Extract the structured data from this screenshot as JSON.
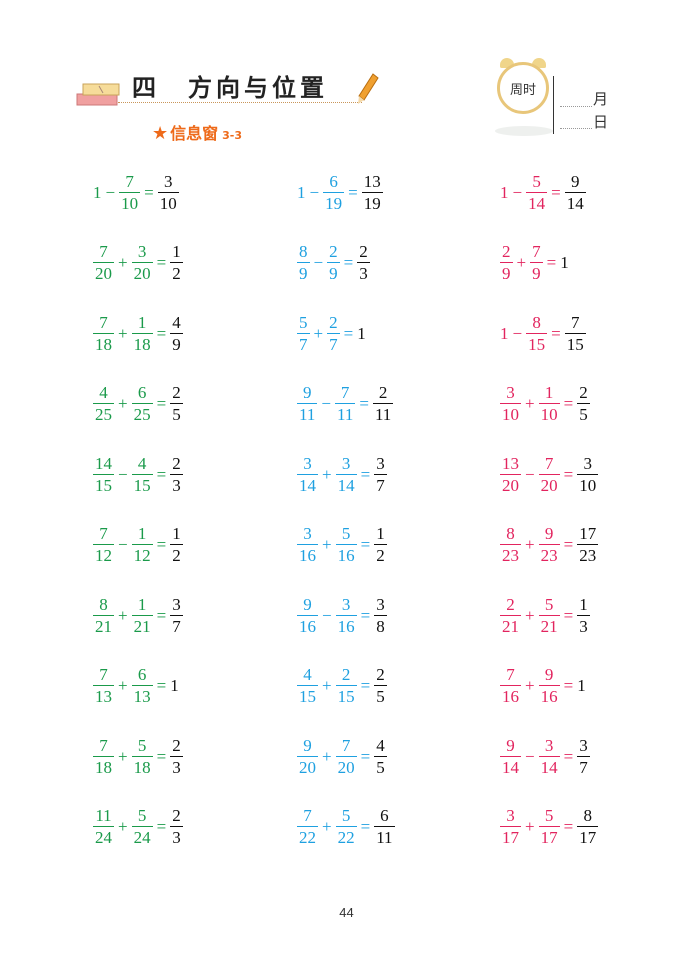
{
  "header": {
    "unit_number": "四",
    "unit_title": "方向与位置",
    "section_label": "信息窗",
    "section_code": "3-3",
    "clock_text": "周时",
    "month_label": "月",
    "day_label": "日"
  },
  "colors": {
    "col1": "#1a9a4a",
    "col2": "#1ea0e0",
    "col3": "#e2245e",
    "accent": "#ee6a1a"
  },
  "columns": [
    {
      "color_key": "col1",
      "equations": [
        {
          "a": "1",
          "op": "−",
          "b": "7/10",
          "r": "3/10"
        },
        {
          "a": "7/20",
          "op": "+",
          "b": "3/20",
          "r": "1/2"
        },
        {
          "a": "7/18",
          "op": "+",
          "b": "1/18",
          "r": "4/9"
        },
        {
          "a": "4/25",
          "op": "+",
          "b": "6/25",
          "r": "2/5"
        },
        {
          "a": "14/15",
          "op": "−",
          "b": "4/15",
          "r": "2/3"
        },
        {
          "a": "7/12",
          "op": "−",
          "b": "1/12",
          "r": "1/2"
        },
        {
          "a": "8/21",
          "op": "+",
          "b": "1/21",
          "r": "3/7"
        },
        {
          "a": "7/13",
          "op": "+",
          "b": "6/13",
          "r": "1"
        },
        {
          "a": "7/18",
          "op": "+",
          "b": "5/18",
          "r": "2/3"
        },
        {
          "a": "11/24",
          "op": "+",
          "b": "5/24",
          "r": "2/3"
        }
      ]
    },
    {
      "color_key": "col2",
      "equations": [
        {
          "a": "1",
          "op": "−",
          "b": "6/19",
          "r": "13/19"
        },
        {
          "a": "8/9",
          "op": "−",
          "b": "2/9",
          "r": "2/3"
        },
        {
          "a": "5/7",
          "op": "+",
          "b": "2/7",
          "r": "1"
        },
        {
          "a": "9/11",
          "op": "−",
          "b": "7/11",
          "r": "2/11"
        },
        {
          "a": "3/14",
          "op": "+",
          "b": "3/14",
          "r": "3/7"
        },
        {
          "a": "3/16",
          "op": "+",
          "b": "5/16",
          "r": "1/2"
        },
        {
          "a": "9/16",
          "op": "−",
          "b": "3/16",
          "r": "3/8"
        },
        {
          "a": "4/15",
          "op": "+",
          "b": "2/15",
          "r": "2/5"
        },
        {
          "a": "9/20",
          "op": "+",
          "b": "7/20",
          "r": "4/5"
        },
        {
          "a": "7/22",
          "op": "+",
          "b": "5/22",
          "r": "6/11"
        }
      ]
    },
    {
      "color_key": "col3",
      "equations": [
        {
          "a": "1",
          "op": "−",
          "b": "5/14",
          "r": "9/14"
        },
        {
          "a": "2/9",
          "op": "+",
          "b": "7/9",
          "r": "1"
        },
        {
          "a": "1",
          "op": "−",
          "b": "8/15",
          "r": "7/15"
        },
        {
          "a": "3/10",
          "op": "+",
          "b": "1/10",
          "r": "2/5"
        },
        {
          "a": "13/20",
          "op": "−",
          "b": "7/20",
          "r": "3/10"
        },
        {
          "a": "8/23",
          "op": "+",
          "b": "9/23",
          "r": "17/23"
        },
        {
          "a": "2/21",
          "op": "+",
          "b": "5/21",
          "r": "1/3"
        },
        {
          "a": "7/16",
          "op": "+",
          "b": "9/16",
          "r": "1"
        },
        {
          "a": "9/14",
          "op": "−",
          "b": "3/14",
          "r": "3/7"
        },
        {
          "a": "3/17",
          "op": "+",
          "b": "5/17",
          "r": "8/17"
        }
      ]
    }
  ],
  "page_number": "44"
}
